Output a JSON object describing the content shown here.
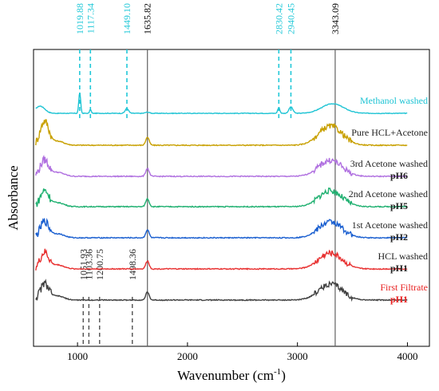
{
  "chart_data": {
    "type": "line",
    "title": "",
    "xlabel": "Wavenumber (cm⁻¹)",
    "xlabel_parts": {
      "text": "Wavenumber (cm",
      "sup": "-1",
      "close": ")"
    },
    "ylabel": "Absorbance",
    "xlim": [
      600,
      4200
    ],
    "x_ticks": [
      1000,
      2000,
      3000,
      4000
    ],
    "y_ticks_shown": false,
    "grid": false,
    "legend": "none",
    "reference_lines": [
      {
        "x": 1635.82,
        "label": "1635.82",
        "color": "#606060"
      },
      {
        "x": 3343.09,
        "label": "3343.09",
        "color": "#606060"
      }
    ],
    "top_peak_marks": [
      {
        "x": 1019.88,
        "label": "1019.88",
        "color": "#22c8d8"
      },
      {
        "x": 1117.34,
        "label": "1117.34",
        "color": "#22c8d8"
      },
      {
        "x": 1449.1,
        "label": "1449.10",
        "color": "#22c8d8"
      },
      {
        "x": 2830.42,
        "label": "2830.42",
        "color": "#22c8d8"
      },
      {
        "x": 2940.45,
        "label": "2940.45",
        "color": "#22c8d8"
      }
    ],
    "bottom_peak_marks": [
      {
        "x": 1051.93,
        "label": "1051.93",
        "color": "#505050"
      },
      {
        "x": 1103.36,
        "label": "1103.36",
        "color": "#505050"
      },
      {
        "x": 1200.75,
        "label": "1200.75",
        "color": "#505050"
      },
      {
        "x": 1498.36,
        "label": "1498.36",
        "color": "#505050"
      }
    ],
    "series": [
      {
        "name": "Methanol washed",
        "sublabel": "",
        "color": "#1fc4d4",
        "label_color": "#1fc4d4",
        "sub_color": ""
      },
      {
        "name": "Pure HCL+Acetone",
        "sublabel": "",
        "color": "#c8a000",
        "label_color": "#222222",
        "sub_color": ""
      },
      {
        "name": "3rd Acetone washed",
        "sublabel": "pH6",
        "color": "#b070e0",
        "label_color": "#222222",
        "sub_color": "#222222"
      },
      {
        "name": "2nd Acetone washed",
        "sublabel": "pH5",
        "color": "#1fb070",
        "label_color": "#222222",
        "sub_color": "#222222"
      },
      {
        "name": "1st Acetone washed",
        "sublabel": "pH2",
        "color": "#1a5fd0",
        "label_color": "#222222",
        "sub_color": "#222222"
      },
      {
        "name": "HCL washed",
        "sublabel": "pH1",
        "color": "#e83030",
        "label_color": "#222222",
        "sub_color": "#222222"
      },
      {
        "name": "First Filtrate",
        "sublabel": "pH1",
        "color": "#404040",
        "label_color": "#e82020",
        "sub_color": "#e82020"
      }
    ]
  }
}
